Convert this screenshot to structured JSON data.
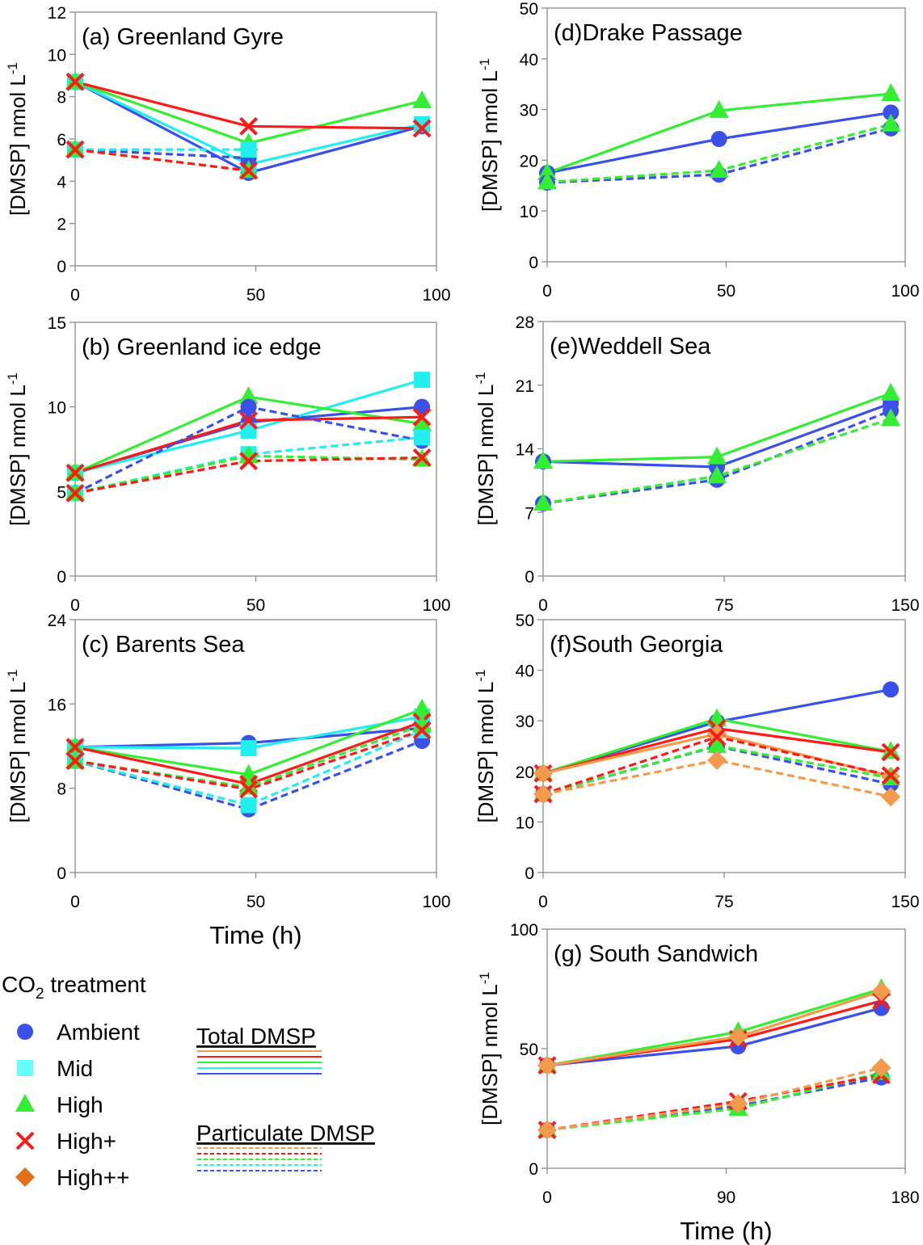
{
  "colors": {
    "Ambient": "#3b50e8",
    "Mid": "#22eeee",
    "High": "#33ee33",
    "High+": "#ff1a1a",
    "High++": "#f39a4c",
    "legend_High++": "#e27019",
    "legend_Mid": "#66ffff"
  },
  "legend": {
    "title_prefix": "CO",
    "title_sub": "2",
    "title_suffix": " treatment",
    "treatments": [
      {
        "name": "Ambient",
        "marker": "circle"
      },
      {
        "name": "Mid",
        "marker": "square"
      },
      {
        "name": "High",
        "marker": "triangle"
      },
      {
        "name": "High+",
        "marker": "x"
      },
      {
        "name": "High++",
        "marker": "diamond"
      }
    ],
    "total_label": "Total DMSP",
    "particulate_label": "Particulate DMSP"
  },
  "chart_data": [
    {
      "id": "a",
      "type": "line",
      "title": "(a) Greenland Gyre",
      "ylabel": "[DMSP] nmol L-1",
      "xlabel": "",
      "x": [
        0,
        48,
        96
      ],
      "xticks": [
        0,
        50,
        100
      ],
      "xlim": [
        0,
        100
      ],
      "ylim": [
        0,
        12
      ],
      "yticks": [
        0,
        2,
        4,
        6,
        8,
        10,
        12
      ],
      "series": [
        {
          "name": "Ambient",
          "kind": "Total DMSP",
          "values": [
            8.7,
            4.4,
            6.6
          ]
        },
        {
          "name": "Mid",
          "kind": "Total DMSP",
          "values": [
            8.7,
            4.8,
            6.7
          ]
        },
        {
          "name": "High",
          "kind": "Total DMSP",
          "values": [
            8.7,
            5.8,
            7.8
          ]
        },
        {
          "name": "High+",
          "kind": "Total DMSP",
          "values": [
            8.7,
            6.6,
            6.5
          ]
        },
        {
          "name": "Ambient",
          "kind": "Particulate DMSP",
          "values": [
            5.5,
            5.1,
            null
          ]
        },
        {
          "name": "Mid",
          "kind": "Particulate DMSP",
          "values": [
            5.5,
            5.5,
            null
          ]
        },
        {
          "name": "High",
          "kind": "Particulate DMSP",
          "values": [
            5.5,
            4.5,
            null
          ]
        },
        {
          "name": "High+",
          "kind": "Particulate DMSP",
          "values": [
            5.5,
            4.5,
            null
          ]
        }
      ]
    },
    {
      "id": "b",
      "type": "line",
      "title": "(b) Greenland ice edge",
      "ylabel": "[DMSP] nmol L-1",
      "xlabel": "",
      "x": [
        0,
        48,
        96
      ],
      "xticks": [
        0,
        50,
        100
      ],
      "xlim": [
        0,
        100
      ],
      "ylim": [
        0,
        15
      ],
      "yticks": [
        0,
        5,
        10,
        15
      ],
      "series": [
        {
          "name": "Ambient",
          "kind": "Total DMSP",
          "values": [
            6.1,
            9.1,
            10.0
          ]
        },
        {
          "name": "Mid",
          "kind": "Total DMSP",
          "values": [
            6.1,
            8.6,
            11.6
          ]
        },
        {
          "name": "High",
          "kind": "Total DMSP",
          "values": [
            6.1,
            10.6,
            9.0
          ]
        },
        {
          "name": "High+",
          "kind": "Total DMSP",
          "values": [
            6.1,
            9.2,
            9.4
          ]
        },
        {
          "name": "Ambient",
          "kind": "Particulate DMSP",
          "values": [
            4.9,
            10.0,
            8.0
          ]
        },
        {
          "name": "Mid",
          "kind": "Particulate DMSP",
          "values": [
            4.9,
            7.2,
            8.2
          ]
        },
        {
          "name": "High",
          "kind": "Particulate DMSP",
          "values": [
            4.9,
            7.1,
            6.9
          ]
        },
        {
          "name": "High+",
          "kind": "Particulate DMSP",
          "values": [
            4.9,
            6.8,
            7.0
          ]
        }
      ]
    },
    {
      "id": "c",
      "type": "line",
      "title": "(c) Barents Sea",
      "ylabel": "[DMSP] nmol L-1",
      "xlabel": "Time (h)",
      "x": [
        0,
        48,
        96
      ],
      "xticks": [
        0,
        50,
        100
      ],
      "xlim": [
        0,
        100
      ],
      "ylim": [
        0,
        24
      ],
      "yticks": [
        0,
        8,
        16,
        24
      ],
      "series": [
        {
          "name": "Ambient",
          "kind": "Total DMSP",
          "values": [
            11.9,
            12.3,
            13.7
          ]
        },
        {
          "name": "Mid",
          "kind": "Total DMSP",
          "values": [
            11.9,
            11.8,
            14.8
          ]
        },
        {
          "name": "High",
          "kind": "Total DMSP",
          "values": [
            11.9,
            9.3,
            15.5
          ]
        },
        {
          "name": "High+",
          "kind": "Total DMSP",
          "values": [
            11.9,
            8.4,
            14.3
          ]
        },
        {
          "name": "Ambient",
          "kind": "Particulate DMSP",
          "values": [
            10.6,
            6.0,
            12.5
          ]
        },
        {
          "name": "Mid",
          "kind": "Particulate DMSP",
          "values": [
            10.6,
            6.4,
            13.5
          ]
        },
        {
          "name": "High",
          "kind": "Particulate DMSP",
          "values": [
            10.6,
            8.1,
            14.0
          ]
        },
        {
          "name": "High+",
          "kind": "Particulate DMSP",
          "values": [
            10.6,
            7.9,
            13.5
          ]
        }
      ]
    },
    {
      "id": "d",
      "type": "line",
      "title": "(d)Drake Passage",
      "ylabel": "[DMSP] nmol L-1",
      "xlabel": "",
      "x": [
        0,
        48,
        96
      ],
      "xticks": [
        0,
        50,
        100
      ],
      "xlim": [
        0,
        100
      ],
      "ylim": [
        0,
        50
      ],
      "yticks": [
        0,
        10,
        20,
        30,
        40,
        50
      ],
      "series": [
        {
          "name": "Ambient",
          "kind": "Total DMSP",
          "values": [
            17.5,
            24.2,
            29.4
          ]
        },
        {
          "name": "High",
          "kind": "Total DMSP",
          "values": [
            17.5,
            29.8,
            33.1
          ]
        },
        {
          "name": "Ambient",
          "kind": "Particulate DMSP",
          "values": [
            15.6,
            17.2,
            26.3
          ]
        },
        {
          "name": "High",
          "kind": "Particulate DMSP",
          "values": [
            15.7,
            18.0,
            27.1
          ]
        }
      ]
    },
    {
      "id": "e",
      "type": "line",
      "title": "(e)Weddell Sea",
      "ylabel": "[DMSP] nmol L-1",
      "xlabel": "",
      "x": [
        0,
        72,
        144
      ],
      "xticks": [
        0,
        75,
        150
      ],
      "xlim": [
        0,
        150
      ],
      "ylim": [
        0,
        28
      ],
      "yticks": [
        0,
        7,
        14,
        21,
        28
      ],
      "series": [
        {
          "name": "Ambient",
          "kind": "Total DMSP",
          "values": [
            12.6,
            12.0,
            19.0
          ]
        },
        {
          "name": "High",
          "kind": "Total DMSP",
          "values": [
            12.6,
            13.1,
            20.1
          ]
        },
        {
          "name": "Ambient",
          "kind": "Particulate DMSP",
          "values": [
            8.0,
            10.6,
            18.2
          ]
        },
        {
          "name": "High",
          "kind": "Particulate DMSP",
          "values": [
            8.0,
            11.0,
            17.3
          ]
        }
      ]
    },
    {
      "id": "f",
      "type": "line",
      "title": "(f)South Georgia",
      "ylabel": "[DMSP] nmol L-1",
      "xlabel": "",
      "x": [
        0,
        72,
        144
      ],
      "xticks": [
        0,
        75,
        150
      ],
      "xlim": [
        0,
        150
      ],
      "ylim": [
        0,
        50
      ],
      "yticks": [
        0,
        10,
        20,
        30,
        40,
        50
      ],
      "series": [
        {
          "name": "Ambient",
          "kind": "Total DMSP",
          "values": [
            19.6,
            29.8,
            36.2
          ]
        },
        {
          "name": "High",
          "kind": "Total DMSP",
          "values": [
            19.6,
            30.4,
            23.9
          ]
        },
        {
          "name": "High+",
          "kind": "Total DMSP",
          "values": [
            19.6,
            28.5,
            23.8
          ]
        },
        {
          "name": "High++",
          "kind": "Total DMSP",
          "values": [
            19.6,
            27.4,
            19.0
          ]
        },
        {
          "name": "Ambient",
          "kind": "Particulate DMSP",
          "values": [
            15.5,
            25.0,
            17.5
          ]
        },
        {
          "name": "High",
          "kind": "Particulate DMSP",
          "values": [
            15.5,
            25.1,
            18.7
          ]
        },
        {
          "name": "High+",
          "kind": "Particulate DMSP",
          "values": [
            15.5,
            26.8,
            19.2
          ]
        },
        {
          "name": "High++",
          "kind": "Particulate DMSP",
          "values": [
            15.5,
            22.2,
            15.0
          ]
        }
      ]
    },
    {
      "id": "g",
      "type": "line",
      "title": "(g) South Sandwich",
      "ylabel": "[DMSP] nmol L-1",
      "xlabel": "Time (h)",
      "x": [
        0,
        96,
        168
      ],
      "xticks": [
        0,
        90,
        180
      ],
      "xlim": [
        0,
        180
      ],
      "ylim": [
        0,
        100
      ],
      "yticks": [
        0,
        50,
        100
      ],
      "series": [
        {
          "name": "Ambient",
          "kind": "Total DMSP",
          "values": [
            43,
            51,
            67
          ]
        },
        {
          "name": "High",
          "kind": "Total DMSP",
          "values": [
            43,
            57,
            75
          ]
        },
        {
          "name": "High+",
          "kind": "Total DMSP",
          "values": [
            43,
            54,
            70
          ]
        },
        {
          "name": "High++",
          "kind": "Total DMSP",
          "values": [
            43,
            55,
            74
          ]
        },
        {
          "name": "Ambient",
          "kind": "Particulate DMSP",
          "values": [
            16,
            26,
            38
          ]
        },
        {
          "name": "High",
          "kind": "Particulate DMSP",
          "values": [
            16,
            25,
            40
          ]
        },
        {
          "name": "High+",
          "kind": "Particulate DMSP",
          "values": [
            16,
            28,
            39
          ]
        },
        {
          "name": "High++",
          "kind": "Particulate DMSP",
          "values": [
            16,
            27,
            42
          ]
        }
      ]
    }
  ]
}
